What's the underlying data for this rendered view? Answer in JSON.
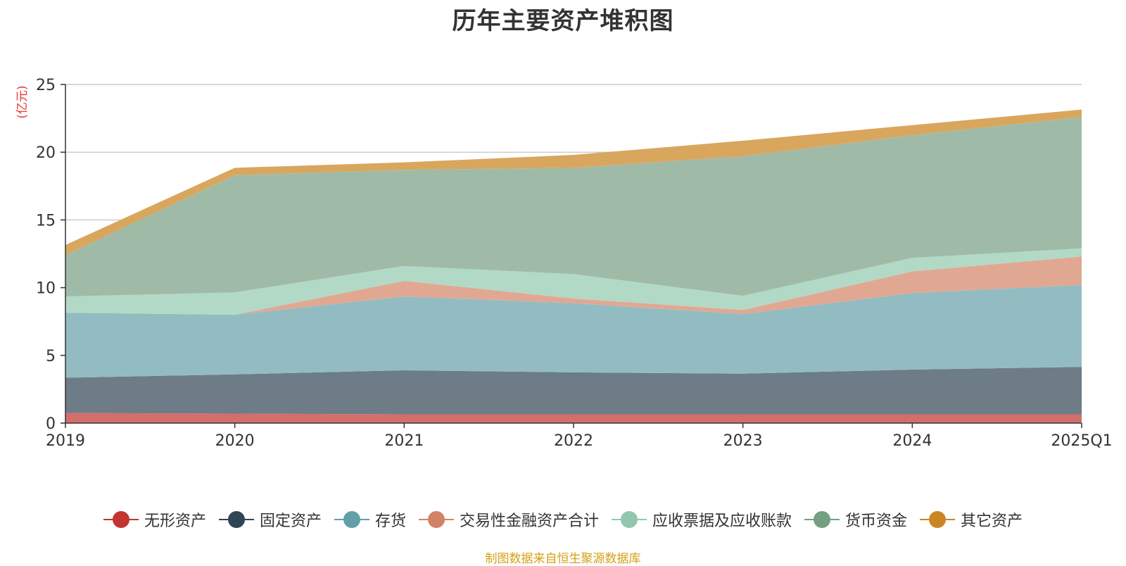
{
  "chart_data": {
    "type": "area",
    "stacked": true,
    "title": "历年主要资产堆积图",
    "unit_label": "(亿元)",
    "x": [
      "2019",
      "2020",
      "2021",
      "2022",
      "2023",
      "2024",
      "2025Q1"
    ],
    "ylim": [
      0,
      25
    ],
    "yticks": [
      "0",
      "5",
      "10",
      "15",
      "20",
      "25"
    ],
    "grid": true,
    "legend_position": "bottom",
    "series": [
      {
        "name": "无形资产",
        "color": "#c23531",
        "fill": "#d46e6b",
        "values": [
          0.75,
          0.7,
          0.65,
          0.65,
          0.65,
          0.65,
          0.65
        ]
      },
      {
        "name": "固定资产",
        "color": "#2f4554",
        "fill": "#6e7c88",
        "values": [
          2.6,
          2.9,
          3.25,
          3.1,
          3.0,
          3.3,
          3.5
        ]
      },
      {
        "name": "存货",
        "color": "#61a0a8",
        "fill": "#92bcc2",
        "values": [
          4.8,
          4.4,
          5.45,
          5.1,
          4.4,
          5.65,
          6.05
        ]
      },
      {
        "name": "交易性金融资产合计",
        "color": "#d48265",
        "fill": "#e0a893",
        "values": [
          0.0,
          0.0,
          1.15,
          0.35,
          0.3,
          1.6,
          2.1
        ]
      },
      {
        "name": "应收票据及应收账款",
        "color": "#91c7ae",
        "fill": "#b2d9c6",
        "values": [
          1.2,
          1.65,
          1.1,
          1.8,
          1.05,
          1.0,
          0.6
        ]
      },
      {
        "name": "货币资金",
        "color": "#749f83",
        "fill": "#9fbba8",
        "values": [
          3.05,
          8.65,
          7.1,
          7.85,
          10.3,
          9.05,
          9.7
        ]
      },
      {
        "name": "其它资产",
        "color": "#ca8622",
        "fill": "#d9a65e",
        "values": [
          0.75,
          0.55,
          0.55,
          0.95,
          1.15,
          0.75,
          0.55
        ]
      }
    ]
  },
  "source_note": "制图数据来自恒生聚源数据库",
  "colors": {
    "unit_label": "#ee3333",
    "source_note": "#d4a017",
    "grid": "#cccccc",
    "axis": "#333333"
  }
}
